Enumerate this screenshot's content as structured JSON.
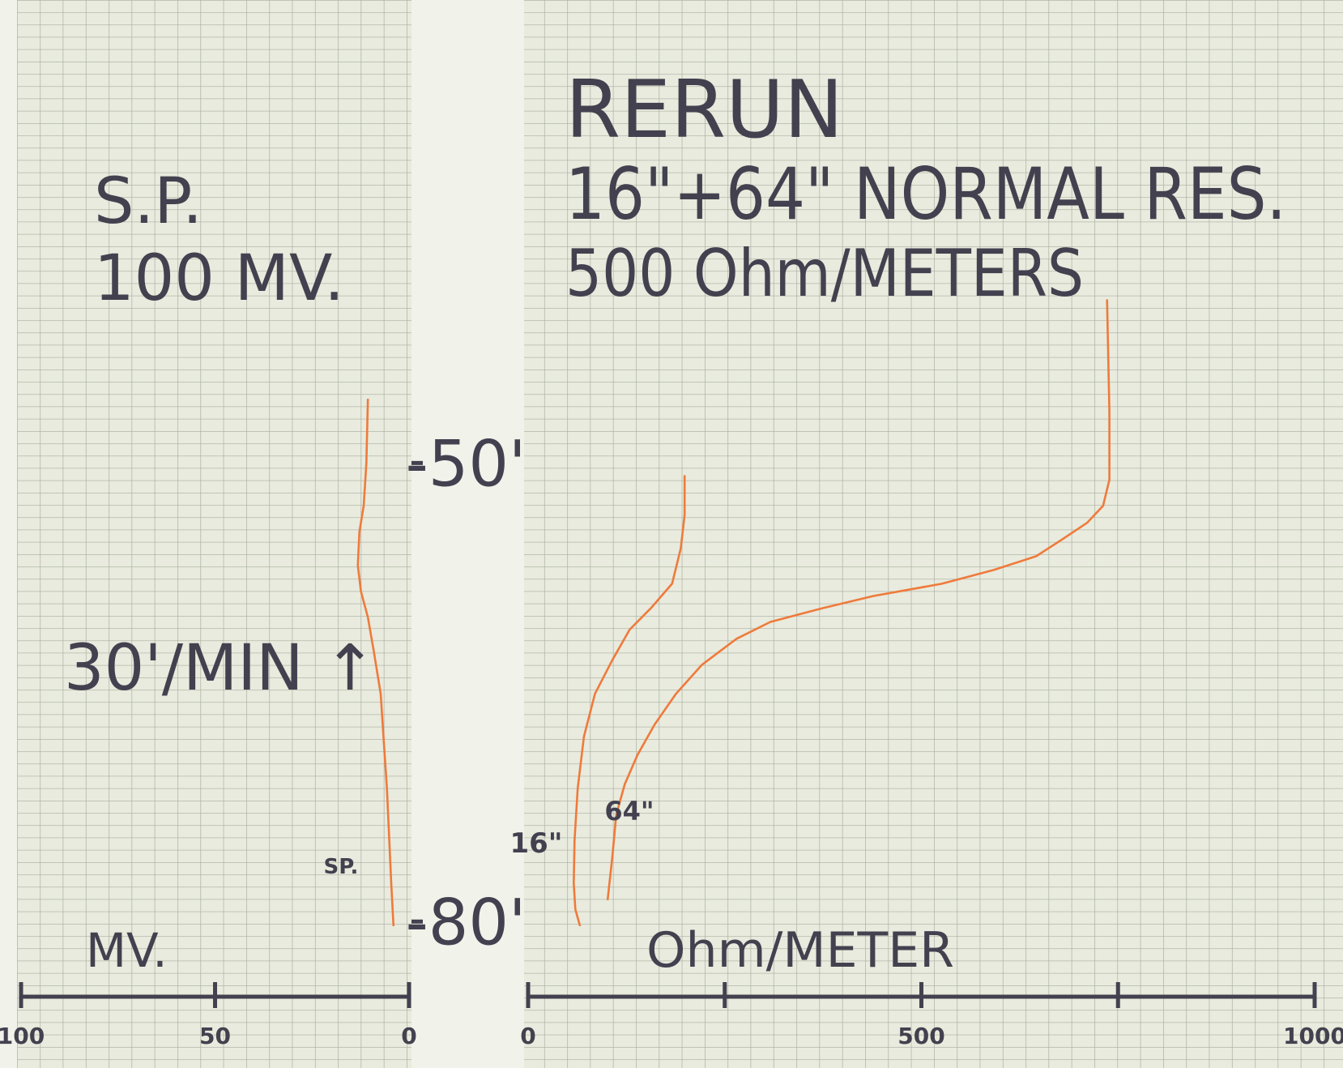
{
  "chart_data": [
    {
      "type": "line",
      "title": "S.P.",
      "subtitle": "100 MV.",
      "annotation": "30'/MIN ↑",
      "x_label": "MV.",
      "xlim": [
        100,
        0
      ],
      "xticks": [
        100,
        50,
        0
      ],
      "ylim": [
        38,
        82
      ],
      "y_inverted": true,
      "yticks": [
        {
          "value": 50,
          "label": "-50'"
        },
        {
          "value": 80,
          "label": "-80'"
        }
      ],
      "grid": true,
      "series": [
        {
          "name": "SP.",
          "color": "#ef7a3c",
          "depth": [
            45.8,
            50,
            52.8,
            54.5,
            56.7,
            58.4,
            60.1,
            62.3,
            65.1,
            67.9,
            71.3,
            74.7,
            77.5,
            80.3
          ],
          "values": [
            10.6,
            11.0,
            11.7,
            12.8,
            13.2,
            12.4,
            10.6,
            9.1,
            7.3,
            6.6,
            5.7,
            5.1,
            4.6,
            4.0
          ]
        }
      ]
    },
    {
      "type": "line",
      "title": "RERUN",
      "subtitle": "16\"+64\" NORMAL RES.",
      "annotation": "500 Ohm/METERS",
      "x_label": "Ohm/METER",
      "xlim": [
        0,
        1000
      ],
      "xticks": [
        0,
        500,
        1000
      ],
      "xminor": [
        250,
        750
      ],
      "grid": true,
      "series": [
        {
          "name": "16\"",
          "color": "#ef7a3c",
          "depth": [
            50.8,
            53.4,
            55.6,
            57.9,
            59.5,
            60.9,
            62.9,
            65.1,
            67.9,
            71.3,
            74.7,
            77.5,
            79.2,
            80.3
          ],
          "values": [
            199,
            199,
            194,
            183,
            156,
            129,
            107,
            85,
            71,
            63,
            59,
            58,
            60,
            66
          ]
        },
        {
          "name": "64\"",
          "color": "#ef7a3c",
          "depth": [
            39.3,
            46.6,
            51.1,
            52.8,
            53.9,
            55.0,
            56.1,
            57.0,
            57.9,
            58.7,
            59.5,
            60.4,
            61.5,
            63.2,
            65.1,
            67.1,
            69.1,
            71.0,
            73.0,
            75.8,
            78.6
          ],
          "values": [
            736,
            739,
            739,
            731,
            711,
            679,
            646,
            592,
            526,
            439,
            374,
            308,
            265,
            221,
            188,
            161,
            139,
            123,
            112,
            107,
            101
          ]
        }
      ]
    }
  ]
}
